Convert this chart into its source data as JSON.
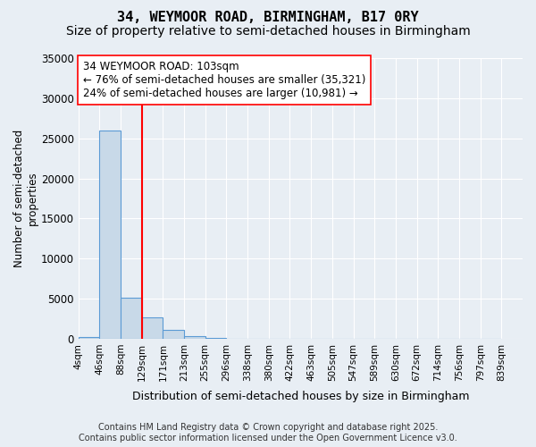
{
  "title_line1": "34, WEYMOOR ROAD, BIRMINGHAM, B17 0RY",
  "title_line2": "Size of property relative to semi-detached houses in Birmingham",
  "xlabel": "Distribution of semi-detached houses by size in Birmingham",
  "ylabel": "Number of semi-detached\nproperties",
  "bin_labels": [
    "4sqm",
    "46sqm",
    "88sqm",
    "129sqm",
    "171sqm",
    "213sqm",
    "255sqm",
    "296sqm",
    "338sqm",
    "380sqm",
    "422sqm",
    "463sqm",
    "505sqm",
    "547sqm",
    "589sqm",
    "630sqm",
    "672sqm",
    "714sqm",
    "756sqm",
    "797sqm",
    "839sqm"
  ],
  "bar_values": [
    200,
    26000,
    5100,
    2700,
    1100,
    350,
    150,
    0,
    0,
    0,
    0,
    0,
    0,
    0,
    0,
    0,
    0,
    0,
    0,
    0
  ],
  "bar_color": "#c8d9e8",
  "bar_edge_color": "#5b9bd5",
  "red_line_x": 2.5,
  "annotation_text": "34 WEYMOOR ROAD: 103sqm\n← 76% of semi-detached houses are smaller (35,321)\n24% of semi-detached houses are larger (10,981) →",
  "ylim": [
    0,
    35000
  ],
  "yticks": [
    0,
    5000,
    10000,
    15000,
    20000,
    25000,
    30000,
    35000
  ],
  "background_color": "#e8eef4",
  "plot_bg_color": "#e8eef4",
  "footer_line1": "Contains HM Land Registry data © Crown copyright and database right 2025.",
  "footer_line2": "Contains public sector information licensed under the Open Government Licence v3.0.",
  "grid_color": "#ffffff",
  "title_fontsize": 11,
  "subtitle_fontsize": 10,
  "annotation_fontsize": 8.5,
  "axis_fontsize": 8.5,
  "footer_fontsize": 7
}
